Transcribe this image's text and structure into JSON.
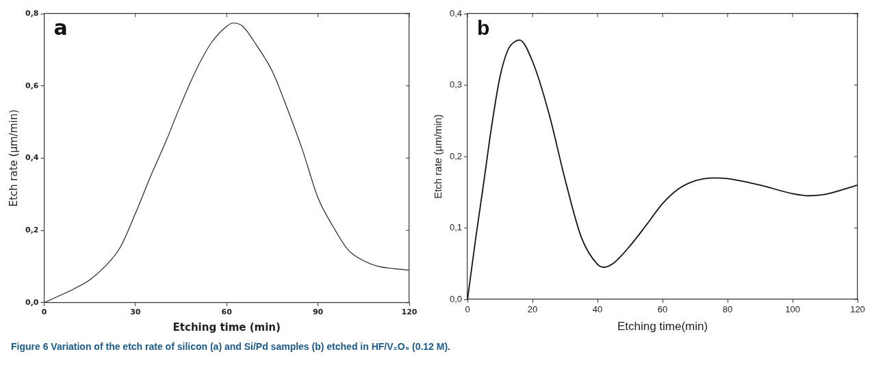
{
  "chart_data": [
    {
      "type": "line",
      "title": "a",
      "xlabel": "Etching time (min)",
      "ylabel": "Etch rate (µm/min)",
      "xlim": [
        0,
        120
      ],
      "xticks": [
        0,
        30,
        60,
        90,
        120
      ],
      "ylim": [
        0,
        0.8
      ],
      "yticks": [
        {
          "value": 0,
          "label": "0,0"
        },
        {
          "value": 0.2,
          "label": "0,2"
        },
        {
          "value": 0.4,
          "label": "0,4"
        },
        {
          "value": 0.6,
          "label": "0,6"
        },
        {
          "value": 0.8,
          "label": "0,8"
        }
      ],
      "grid": false,
      "marker": "none",
      "line_style": "solid",
      "series": [
        {
          "color": "#222222",
          "x": [
            0,
            5,
            10,
            15,
            20,
            25,
            30,
            35,
            40,
            45,
            50,
            55,
            60,
            62,
            65,
            70,
            75,
            80,
            85,
            90,
            95,
            100,
            105,
            110,
            115,
            120
          ],
          "values": [
            0,
            0.019,
            0.039,
            0.063,
            0.1,
            0.153,
            0.247,
            0.35,
            0.446,
            0.55,
            0.645,
            0.72,
            0.765,
            0.774,
            0.767,
            0.71,
            0.64,
            0.535,
            0.42,
            0.29,
            0.21,
            0.145,
            0.116,
            0.1,
            0.094,
            0.09
          ]
        }
      ]
    },
    {
      "type": "line",
      "title": "b",
      "xlabel": "Etching time(min)",
      "ylabel": "Etch rate (µm/min)",
      "xlim": [
        0,
        120
      ],
      "xticks": [
        0,
        20,
        40,
        60,
        80,
        100,
        120
      ],
      "ylim": [
        0,
        0.4
      ],
      "yticks": [
        {
          "value": 0,
          "label": "0,0"
        },
        {
          "value": 0.1,
          "label": "0,1"
        },
        {
          "value": 0.2,
          "label": "0,2"
        },
        {
          "value": 0.3,
          "label": "0,3"
        },
        {
          "value": 0.4,
          "label": "0,4"
        }
      ],
      "grid": false,
      "marker": "none",
      "line_style": "solid",
      "annotations": [
        "Figure 6 Variation of the etch rate of silicon (a) and Si/Pd samples (b) etched in HF/V₂O₅ (0.12 M)."
      ],
      "series": [
        {
          "color": "#111111",
          "x": [
            0,
            2.5,
            5,
            7.5,
            10,
            12.5,
            15,
            16,
            20,
            25,
            30,
            35,
            40,
            42,
            45,
            50,
            55,
            60,
            65,
            70,
            76,
            80,
            90,
            100,
            105,
            110,
            120
          ],
          "values": [
            0,
            0.085,
            0.164,
            0.245,
            0.312,
            0.35,
            0.362,
            0.363,
            0.333,
            0.261,
            0.168,
            0.087,
            0.049,
            0.045,
            0.051,
            0.075,
            0.104,
            0.134,
            0.155,
            0.166,
            0.17,
            0.169,
            0.16,
            0.148,
            0.145,
            0.147,
            0.16
          ]
        }
      ]
    }
  ]
}
